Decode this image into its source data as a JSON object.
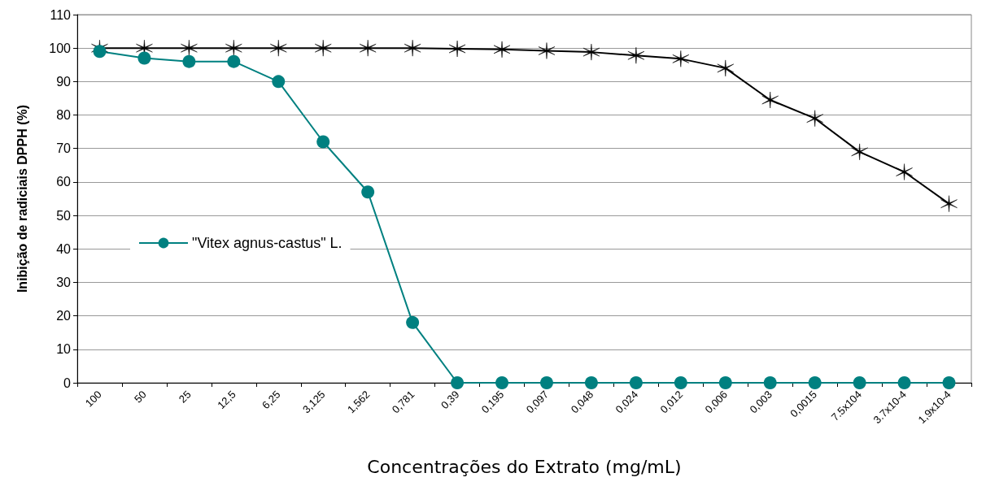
{
  "chart_data": {
    "type": "line",
    "xlabel": "Concentrações do Extrato (mg/mL)",
    "ylabel": "Inibição de radiciais DPPH (%)",
    "categories": [
      "100",
      "50",
      "25",
      "12,5",
      "6,25",
      "3,125",
      "1,562",
      "0,781",
      "0,39",
      "0,195",
      "0,097",
      "0,048",
      "0,024",
      "0,012",
      "0,006",
      "0,003",
      "0,0015",
      "7.5x104",
      "3.7x10-4",
      "1,9x10-4"
    ],
    "series": [
      {
        "color": "#000000",
        "marker": "cross",
        "values": [
          100,
          100,
          100,
          100,
          100,
          100,
          100,
          100,
          99.8,
          99.6,
          99.2,
          98.8,
          97.8,
          96.8,
          94,
          84.5,
          79,
          69,
          63,
          53.5
        ]
      },
      {
        "name": "\"Vitex agnus-castus\" L.",
        "color": "#008080",
        "marker": "circle",
        "values": [
          99,
          97,
          96,
          96,
          90,
          72,
          57,
          18,
          0,
          0,
          0,
          0,
          0,
          0,
          0,
          0,
          0,
          0,
          0,
          0
        ]
      }
    ],
    "ylim": [
      0,
      110
    ],
    "yticks": [
      0,
      10,
      20,
      30,
      40,
      50,
      60,
      70,
      80,
      90,
      100,
      110
    ],
    "grid": "y",
    "legend": "left",
    "line_style": "solid"
  }
}
